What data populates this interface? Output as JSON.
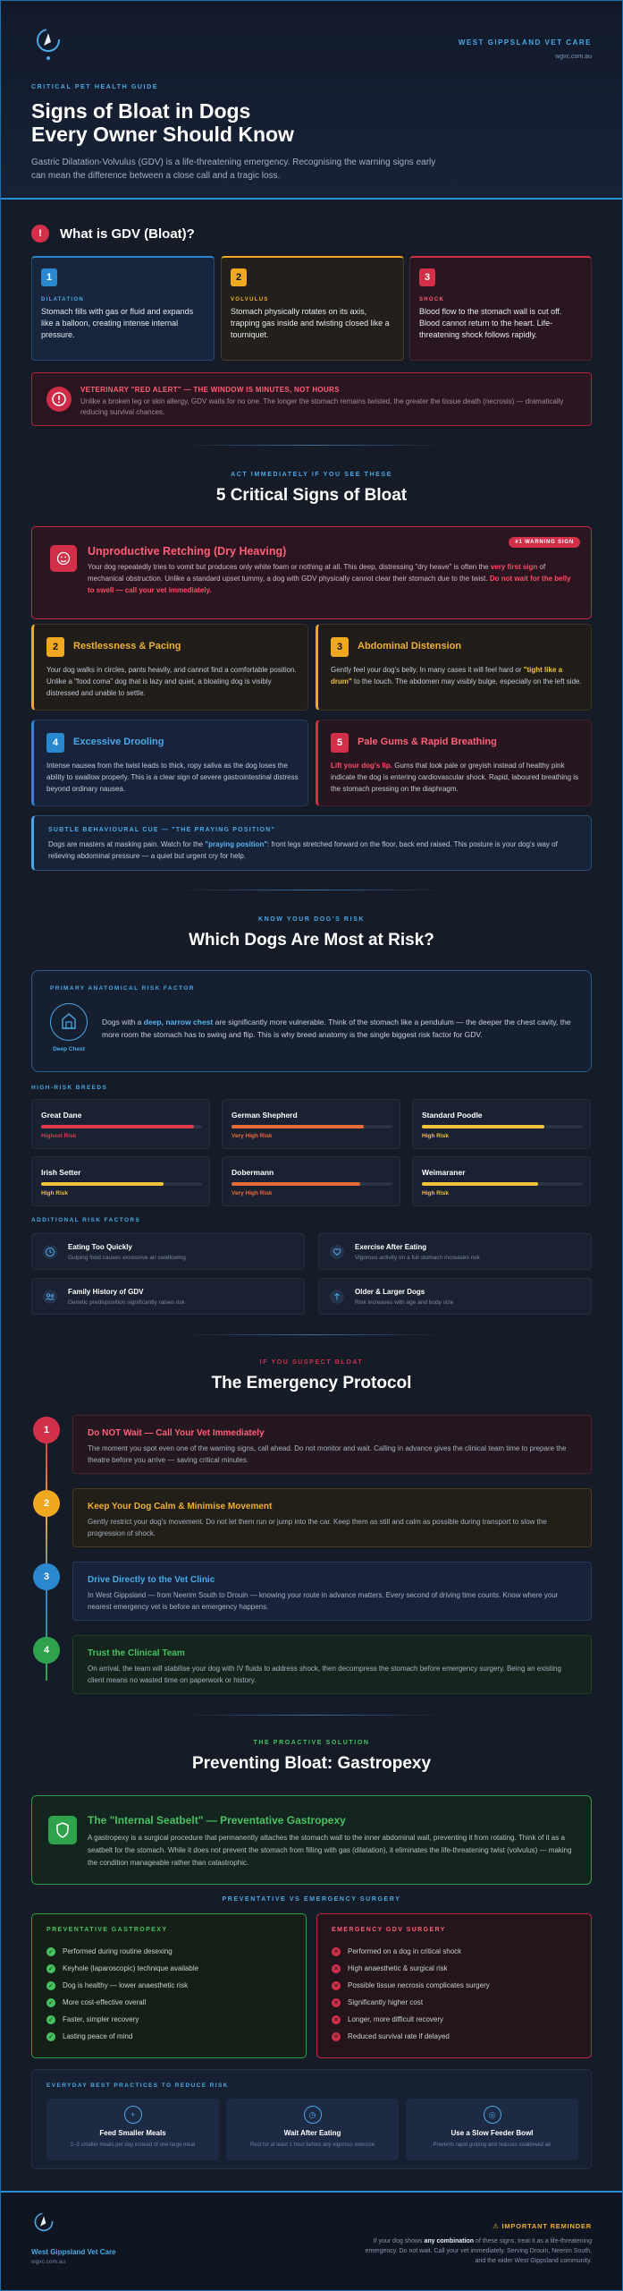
{
  "header": {
    "clinic_name": "WEST GIPPSLAND VET CARE",
    "clinic_url": "wgvc.com.au",
    "eyebrow": "CRITICAL PET HEALTH GUIDE",
    "title_line1": "Signs of Bloat in Dogs",
    "title_line2": "Every Owner Should Know",
    "subtitle": "Gastric Dilatation-Volvulus (GDV) is a life-threatening emergency. Recognising the warning signs early can mean the difference between a close call and a tragic loss."
  },
  "gdv": {
    "badge": "!",
    "title": "What is GDV (Bloat)?",
    "stages": [
      {
        "num": "1",
        "label": "DILATATION",
        "text": "Stomach fills with gas or fluid and expands like a balloon, creating intense internal pressure."
      },
      {
        "num": "2",
        "label": "VOLVULUS",
        "text": "Stomach physically rotates on its axis, trapping gas inside and twisting closed like a tourniquet."
      },
      {
        "num": "3",
        "label": "SHOCK",
        "text": "Blood flow to the stomach wall is cut off. Blood cannot return to the heart. Life-threatening shock follows rapidly."
      }
    ],
    "alert_title": "VETERINARY \"RED ALERT\" — THE WINDOW IS MINUTES, NOT HOURS",
    "alert_text": "Unlike a broken leg or skin allergy, GDV waits for no one. The longer the stomach remains twisted, the greater the tissue death (necrosis) — dramatically reducing survival chances."
  },
  "signs": {
    "kicker": "ACT IMMEDIATELY IF YOU SEE THESE",
    "title": "5 Critical Signs of Bloat",
    "main": {
      "title": "Unproductive Retching (Dry Heaving)",
      "badge": "#1 WARNING SIGN",
      "text_a": "Your dog repeatedly tries to vomit but produces only white foam or nothing at all. This deep, distressing \"dry heave\" is often the ",
      "text_hl1": "very first sign",
      "text_b": " of mechanical obstruction. Unlike a standard upset tummy, a dog with GDV physically cannot clear their stomach due to the twist. ",
      "text_hl2": "Do not wait for the belly to swell — call your vet immediately."
    },
    "items": [
      {
        "num": "2",
        "title": "Restlessness & Pacing",
        "text": "Your dog walks in circles, pants heavily, and cannot find a comfortable position. Unlike a \"food coma\" dog that is lazy and quiet, a bloating dog is visibly distressed and unable to settle."
      },
      {
        "num": "3",
        "title": "Abdominal Distension",
        "text_a": "Gently feel your dog's belly. In many cases it will feel hard or ",
        "text_hl": "\"tight like a drum\"",
        "text_b": " to the touch. The abdomen may visibly bulge, especially on the left side."
      },
      {
        "num": "4",
        "title": "Excessive Drooling",
        "text_a": "Intense nausea from the twist leads to thick, ropy saliva as the dog loses the ability to swallow properly. This is a clear sign of severe gastrointestinal distress beyond ordinary nausea.",
        "text_hl": "",
        "text_b": ""
      },
      {
        "num": "5",
        "title": "Pale Gums & Rapid Breathing",
        "text_hl": "Lift your dog's lip.",
        "text_b": " Gums that look pale or greyish instead of healthy pink indicate the dog is entering cardiovascular shock. Rapid, laboured breathing is the stomach pressing on the diaphragm."
      }
    ],
    "cue_title": "SUBTLE BEHAVIOURAL CUE — \"THE PRAYING POSITION\"",
    "cue_a": "Dogs are masters at masking pain. Watch for the ",
    "cue_hl": "\"praying position\"",
    "cue_b": ": front legs stretched forward on the floor, back end raised. This posture is your dog's way of relieving abdominal pressure — a quiet but urgent cry for help."
  },
  "risk": {
    "kicker": "KNOW YOUR DOG'S RISK",
    "title": "Which Dogs Are Most at Risk?",
    "primary_label": "PRIMARY ANATOMICAL RISK FACTOR",
    "icon_caption": "Deep Chest",
    "primary_a": "Dogs with a ",
    "primary_hl": "deep, narrow chest",
    "primary_b": " are significantly more vulnerable. Think of the stomach like a pendulum — the deeper the chest cavity, the more room the stomach has to swing and flip. This is why breed anatomy is the single biggest risk factor for GDV.",
    "breeds_label": "HIGH-RISK BREEDS",
    "breeds": [
      {
        "name": "Great Dane",
        "level": "Highest Risk",
        "fill": 0.95,
        "color": "#e0394f"
      },
      {
        "name": "German Shepherd",
        "level": "Very High Risk",
        "fill": 0.82,
        "color": "#ea6a3a"
      },
      {
        "name": "Standard Poodle",
        "level": "High Risk",
        "fill": 0.76,
        "color": "#f2c23a"
      },
      {
        "name": "Irish Setter",
        "level": "High Risk",
        "fill": 0.76,
        "color": "#f2c23a"
      },
      {
        "name": "Dobermann",
        "level": "Very High Risk",
        "fill": 0.8,
        "color": "#ea6a3a"
      },
      {
        "name": "Weimaraner",
        "level": "High Risk",
        "fill": 0.72,
        "color": "#f2c23a"
      }
    ],
    "factors_label": "ADDITIONAL RISK FACTORS",
    "factors": [
      {
        "title": "Eating Too Quickly",
        "text": "Gulping food causes excessive air swallowing"
      },
      {
        "title": "Exercise After Eating",
        "text": "Vigorous activity on a full stomach increases risk"
      },
      {
        "title": "Family History of GDV",
        "text": "Genetic predisposition significantly raises risk"
      },
      {
        "title": "Older & Larger Dogs",
        "text": "Risk increases with age and body size"
      }
    ]
  },
  "protocol": {
    "kicker": "IF YOU SUSPECT BLOAT",
    "title": "The Emergency Protocol",
    "steps": [
      {
        "num": "1",
        "title": "Do NOT Wait — Call Your Vet Immediately",
        "text": "The moment you spot even one of the warning signs, call ahead. Do not monitor and wait. Calling in advance gives the clinical team time to prepare the theatre before you arrive — saving critical minutes."
      },
      {
        "num": "2",
        "title": "Keep Your Dog Calm & Minimise Movement",
        "text": "Gently restrict your dog's movement. Do not let them run or jump into the car. Keep them as still and calm as possible during transport to slow the progression of shock."
      },
      {
        "num": "3",
        "title": "Drive Directly to the Vet Clinic",
        "text": "In West Gippsland — from Neerim South to Drouin — knowing your route in advance matters. Every second of driving time counts. Know where your nearest emergency vet is before an emergency happens."
      },
      {
        "num": "4",
        "title": "Trust the Clinical Team",
        "text": "On arrival, the team will stabilise your dog with IV fluids to address shock, then decompress the stomach before emergency surgery. Being an existing client means no wasted time on paperwork or history."
      }
    ]
  },
  "prevent": {
    "kicker": "THE PROACTIVE SOLUTION",
    "title": "Preventing Bloat: Gastropexy",
    "seat_title": "The \"Internal Seatbelt\" — Preventative Gastropexy",
    "seat_text": "A gastropexy is a surgical procedure that permanently attaches the stomach wall to the inner abdominal wall, preventing it from rotating. Think of it as a seatbelt for the stomach. While it does not prevent the stomach from filling with gas (dilatation), it eliminates the life-threatening twist (volvulus) — making the condition manageable rather than catastrophic.",
    "compare_label": "PREVENTATIVE VS EMERGENCY SURGERY",
    "good_title": "PREVENTATIVE GASTROPEXY",
    "good": [
      "Performed during routine desexing",
      "Keyhole (laparoscopic) technique available",
      "Dog is healthy — lower anaesthetic risk",
      "More cost-effective overall",
      "Faster, simpler recovery",
      "Lasting peace of mind"
    ],
    "bad_title": "EMERGENCY GDV SURGERY",
    "bad": [
      "Performed on a dog in critical shock",
      "High anaesthetic & surgical risk",
      "Possible tissue necrosis complicates surgery",
      "Significantly higher cost",
      "Longer, more difficult recovery",
      "Reduced survival rate if delayed"
    ],
    "best_label": "EVERYDAY BEST PRACTICES TO REDUCE RISK",
    "tips": [
      {
        "title": "Feed Smaller Meals",
        "text": "2–3 smaller meals per day instead of one large meal"
      },
      {
        "title": "Wait After Eating",
        "text": "Rest for at least 1 hour before any vigorous exercise"
      },
      {
        "title": "Use a Slow Feeder Bowl",
        "text": "Prevents rapid gulping and reduces swallowed air"
      }
    ]
  },
  "footer": {
    "clinic_name": "West Gippsland Vet Care",
    "clinic_url": "wgvc.com.au",
    "reminder_title": "⚠ IMPORTANT REMINDER",
    "reminder_a": "If your dog shows ",
    "reminder_hl": "any combination",
    "reminder_b": " of these signs, treat it as a life-threatening emergency. Do not wait. Call your vet immediately. Serving Drouin, Neerim South, and the wider West Gippsland community."
  }
}
